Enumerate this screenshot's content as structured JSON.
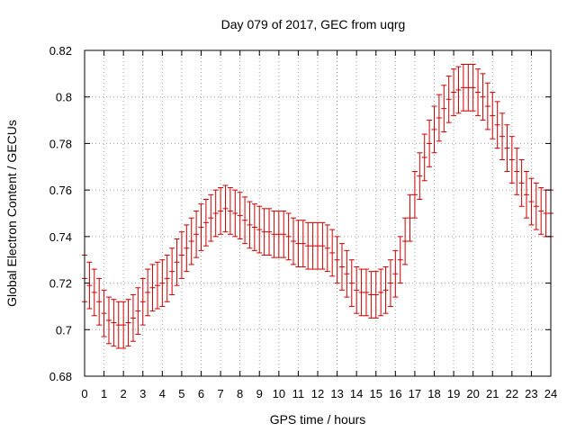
{
  "chart_data": {
    "type": "scatter",
    "style": "errorbar",
    "title": "Day 079 of 2017, GEC from uqrg",
    "xlabel": "GPS time / hours",
    "ylabel": "Global Electron Content / GECUs",
    "xlim": [
      0,
      24
    ],
    "ylim": [
      0.68,
      0.82
    ],
    "xticks": [
      "0",
      "1",
      "2",
      "3",
      "4",
      "5",
      "6",
      "7",
      "8",
      "9",
      "10",
      "11",
      "12",
      "13",
      "14",
      "15",
      "16",
      "17",
      "18",
      "19",
      "20",
      "21",
      "22",
      "23",
      "24"
    ],
    "yticks": [
      "0.68",
      "0.7",
      "0.72",
      "0.74",
      "0.76",
      "0.78",
      "0.8",
      "0.82"
    ],
    "grid": true,
    "grid_style": "dotted",
    "legend": "none",
    "series_color": "#cc0000",
    "error": 0.01,
    "x": [
      0.0,
      0.25,
      0.5,
      0.75,
      1.0,
      1.25,
      1.5,
      1.75,
      2.0,
      2.25,
      2.5,
      2.75,
      3.0,
      3.25,
      3.5,
      3.75,
      4.0,
      4.25,
      4.5,
      4.75,
      5.0,
      5.25,
      5.5,
      5.75,
      6.0,
      6.25,
      6.5,
      6.75,
      7.0,
      7.25,
      7.5,
      7.75,
      8.0,
      8.25,
      8.5,
      8.75,
      9.0,
      9.25,
      9.5,
      9.75,
      10.0,
      10.25,
      10.5,
      10.75,
      11.0,
      11.25,
      11.5,
      11.75,
      12.0,
      12.25,
      12.5,
      12.75,
      13.0,
      13.25,
      13.5,
      13.75,
      14.0,
      14.25,
      14.5,
      14.75,
      15.0,
      15.25,
      15.5,
      15.75,
      16.0,
      16.25,
      16.5,
      16.75,
      17.0,
      17.25,
      17.5,
      17.75,
      18.0,
      18.25,
      18.5,
      18.75,
      19.0,
      19.25,
      19.5,
      19.75,
      20.0,
      20.25,
      20.5,
      20.75,
      21.0,
      21.25,
      21.5,
      21.75,
      22.0,
      22.25,
      22.5,
      22.75,
      23.0,
      23.25,
      23.5,
      23.75,
      24.0
    ],
    "y": [
      0.722,
      0.719,
      0.716,
      0.712,
      0.707,
      0.704,
      0.703,
      0.702,
      0.702,
      0.703,
      0.705,
      0.708,
      0.712,
      0.716,
      0.718,
      0.719,
      0.72,
      0.722,
      0.725,
      0.729,
      0.732,
      0.735,
      0.738,
      0.741,
      0.744,
      0.746,
      0.748,
      0.75,
      0.751,
      0.752,
      0.751,
      0.75,
      0.749,
      0.747,
      0.745,
      0.744,
      0.743,
      0.742,
      0.742,
      0.741,
      0.741,
      0.741,
      0.74,
      0.738,
      0.737,
      0.737,
      0.736,
      0.736,
      0.736,
      0.736,
      0.735,
      0.733,
      0.73,
      0.727,
      0.724,
      0.72,
      0.717,
      0.716,
      0.716,
      0.715,
      0.715,
      0.716,
      0.717,
      0.72,
      0.724,
      0.73,
      0.738,
      0.748,
      0.758,
      0.766,
      0.774,
      0.78,
      0.786,
      0.791,
      0.795,
      0.799,
      0.802,
      0.803,
      0.804,
      0.804,
      0.804,
      0.802,
      0.8,
      0.796,
      0.792,
      0.788,
      0.783,
      0.778,
      0.773,
      0.768,
      0.763,
      0.758,
      0.755,
      0.753,
      0.751,
      0.75,
      0.75
    ]
  }
}
